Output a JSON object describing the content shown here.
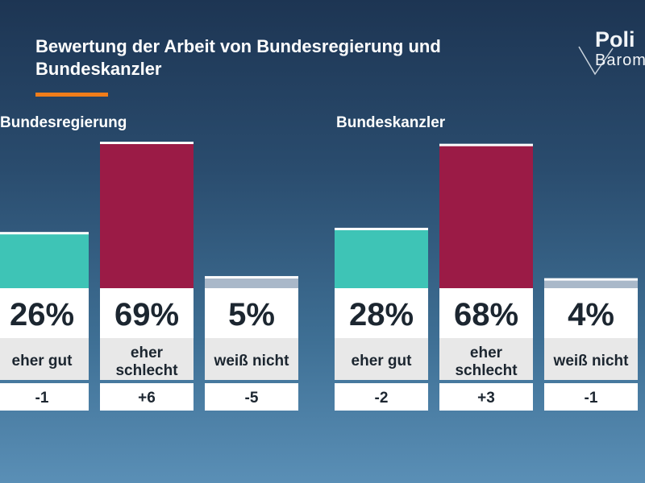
{
  "header": {
    "title": "Bewertung der Arbeit von Bundesregierung und Bundeskanzler",
    "logo_line1": "Poli",
    "logo_line2": "Barom"
  },
  "colors": {
    "positive": "#3ec4b6",
    "negative": "#9b1b46",
    "neutral": "#a9b8c9",
    "accent": "#f07d1a"
  },
  "chart_data": [
    {
      "type": "bar",
      "title": "Bundesregierung",
      "unit": "%",
      "categories": [
        "eher gut",
        "eher schlecht",
        "weiß nicht"
      ],
      "values": [
        26,
        69,
        5
      ],
      "value_labels": [
        "26%",
        "69%",
        "5%"
      ],
      "changes": [
        "-1",
        "+6",
        "-5"
      ],
      "ylim": [
        0,
        69
      ]
    },
    {
      "type": "bar",
      "title": "Bundeskanzler",
      "unit": "%",
      "categories": [
        "eher gut",
        "eher schlecht",
        "weiß nicht"
      ],
      "values": [
        28,
        68,
        4
      ],
      "value_labels": [
        "28%",
        "68%",
        "4%"
      ],
      "changes": [
        "-2",
        "+3",
        "-1"
      ],
      "ylim": [
        0,
        69
      ]
    }
  ]
}
